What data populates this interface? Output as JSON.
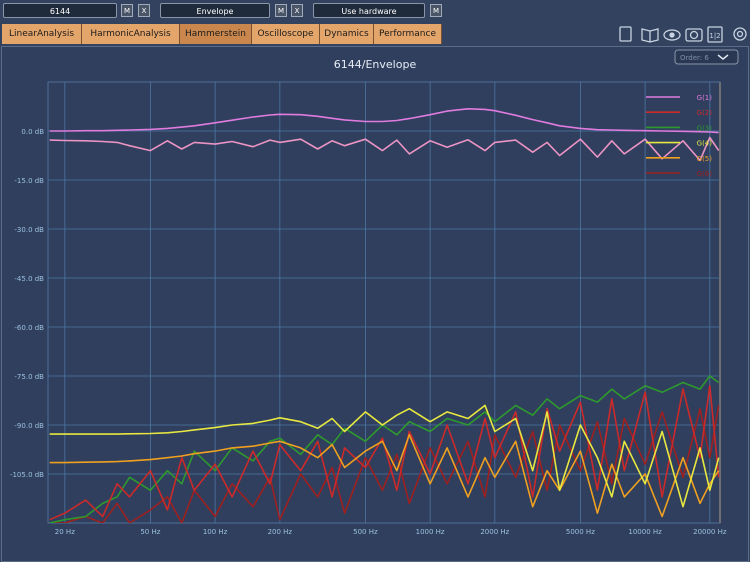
{
  "toolbar": {
    "fields": [
      {
        "text": "6144",
        "buttons": [
          "M",
          "X"
        ]
      },
      {
        "text": "Envelope",
        "buttons": [
          "M",
          "X"
        ]
      },
      {
        "text": "Use hardware",
        "buttons": [
          "M"
        ]
      }
    ],
    "ratio_icon": "1|2",
    "order": "Order: 6"
  },
  "tabs": [
    "LinearAnalysis",
    "HarmonicAnalysis",
    "Hammerstein",
    "Oscilloscope",
    "Dynamics",
    "Performance"
  ],
  "active_tab": 2,
  "chart_data": {
    "type": "line",
    "title": "6144/Envelope",
    "log_x": true,
    "grid": true,
    "legend": "top-right",
    "xlim": [
      16.7,
      22300
    ],
    "ylim": [
      -120,
      15
    ],
    "xticks": [
      {
        "value": 20,
        "label": "20 Hz"
      },
      {
        "value": 50,
        "label": "50 Hz"
      },
      {
        "value": 100,
        "label": "100 Hz"
      },
      {
        "value": 200,
        "label": "200 Hz"
      },
      {
        "value": 500,
        "label": "500 Hz"
      },
      {
        "value": 1000,
        "label": "1000 Hz"
      },
      {
        "value": 2000,
        "label": "2000 Hz"
      },
      {
        "value": 5000,
        "label": "5000 Hz"
      },
      {
        "value": 10000,
        "label": "10000 Hz"
      },
      {
        "value": 20000,
        "label": "20000 Hz"
      }
    ],
    "yticks": [
      {
        "value": 0,
        "label": "0.0 dB"
      },
      {
        "value": -15,
        "label": "-15.0 dB"
      },
      {
        "value": -30,
        "label": "-30.0 dB"
      },
      {
        "value": -45,
        "label": "-45.0 dB"
      },
      {
        "value": -60,
        "label": "-60.0 dB"
      },
      {
        "value": -75,
        "label": "-75.0 dB"
      },
      {
        "value": -90,
        "label": "-90.0 dB"
      },
      {
        "value": -105,
        "label": "-105.0 dB"
      }
    ],
    "x": [
      17,
      20,
      25,
      30,
      35,
      40,
      50,
      60,
      70,
      80,
      100,
      120,
      150,
      180,
      200,
      250,
      300,
      350,
      400,
      500,
      600,
      700,
      800,
      1000,
      1200,
      1500,
      1800,
      2000,
      2500,
      3000,
      3500,
      4000,
      5000,
      6000,
      7000,
      8000,
      10000,
      12000,
      15000,
      18000,
      20000,
      22000
    ],
    "series": [
      {
        "name": "G(1)",
        "color": "#e07be0",
        "values": [
          0,
          0,
          0.1,
          0.1,
          0.2,
          0.3,
          0.5,
          0.8,
          1.2,
          1.6,
          2.5,
          3.3,
          4.3,
          4.9,
          5.1,
          5,
          4.5,
          3.9,
          3.4,
          2.9,
          2.9,
          3.2,
          3.8,
          5,
          6.1,
          6.8,
          6.6,
          6.2,
          4.8,
          3.5,
          2.5,
          1.6,
          0.8,
          0.4,
          0.3,
          0.2,
          0.1,
          0,
          -0.1,
          -0.2,
          -0.3,
          -0.5
        ]
      },
      {
        "name": "G(2)",
        "color": "#cc2a2a",
        "values": [
          -119,
          -117,
          -113,
          -118,
          -108,
          -112,
          -104,
          -116,
          -100,
          -110,
          -102,
          -112,
          -98,
          -108,
          -96,
          -104,
          -95,
          -112,
          -97,
          -103,
          -94,
          -110,
          -92,
          -105,
          -90,
          -108,
          -88,
          -100,
          -86,
          -112,
          -85,
          -98,
          -83,
          -110,
          -82,
          -104,
          -80,
          -112,
          -79,
          -100,
          -78,
          -106
        ]
      },
      {
        "name": "G(3)",
        "color": "#2e9a2e",
        "values": [
          -120,
          -119,
          -118,
          -114,
          -112,
          -106,
          -110,
          -104,
          -108,
          -98,
          -104,
          -97,
          -101,
          -95,
          -94,
          -99,
          -93,
          -96,
          -91,
          -95,
          -90,
          -93,
          -89,
          -92,
          -88,
          -90,
          -86,
          -89,
          -84,
          -87,
          -82,
          -85,
          -81,
          -83,
          -79,
          -82,
          -78,
          -80,
          -77,
          -79,
          -75,
          -77
        ]
      },
      {
        "name": "G(4)",
        "color": "#e8e840",
        "values": [
          -92.8,
          -92.8,
          -92.8,
          -92.8,
          -92.8,
          -92.7,
          -92.6,
          -92.4,
          -92,
          -91.5,
          -90.8,
          -90,
          -89.5,
          -88.5,
          -87.8,
          -89,
          -91,
          -88,
          -92,
          -86,
          -90,
          -87,
          -85,
          -89,
          -86,
          -88,
          -84,
          -92,
          -88,
          -104,
          -86,
          -110,
          -90,
          -100,
          -112,
          -95,
          -108,
          -92,
          -115,
          -97,
          -110,
          -100
        ]
      },
      {
        "name": "G(5)",
        "color": "#f0a020",
        "values": [
          -101.5,
          -101.5,
          -101.4,
          -101.3,
          -101.2,
          -101,
          -100.6,
          -100,
          -99.5,
          -98.8,
          -98,
          -97,
          -96.5,
          -95.5,
          -95,
          -97,
          -100,
          -96,
          -103,
          -98,
          -95,
          -104,
          -93,
          -108,
          -97,
          -112,
          -100,
          -106,
          -95,
          -115,
          -104,
          -110,
          -98,
          -117,
          -102,
          -112,
          -105,
          -118,
          -100,
          -114,
          -108,
          -104
        ]
      },
      {
        "name": "G(6)",
        "color": "#9e2020",
        "values": [
          -120,
          -120,
          -118,
          -120,
          -114,
          -120,
          -116,
          -112,
          -120,
          -110,
          -118,
          -108,
          -115,
          -106,
          -119,
          -105,
          -112,
          -103,
          -117,
          -100,
          -110,
          -99,
          -114,
          -97,
          -108,
          -95,
          -112,
          -93,
          -106,
          -92,
          -110,
          -90,
          -104,
          -89,
          -108,
          -88,
          -102,
          -86,
          -106,
          -85,
          -100,
          -84
        ]
      },
      {
        "color": "#ec94c4",
        "values": [
          -2.8,
          -2.9,
          -3,
          -3.2,
          -3.5,
          -4.5,
          -6,
          -3,
          -5.5,
          -3.5,
          -4,
          -3.2,
          -4.8,
          -2.8,
          -3.5,
          -2.5,
          -5.5,
          -3,
          -4.5,
          -2.5,
          -6,
          -2.8,
          -7,
          -3,
          -5,
          -2.7,
          -6,
          -3.5,
          -2.8,
          -6.5,
          -3.5,
          -7.5,
          -2.5,
          -8,
          -3,
          -7,
          -2.5,
          -8.5,
          -3,
          -9,
          -2,
          -6
        ]
      }
    ]
  }
}
